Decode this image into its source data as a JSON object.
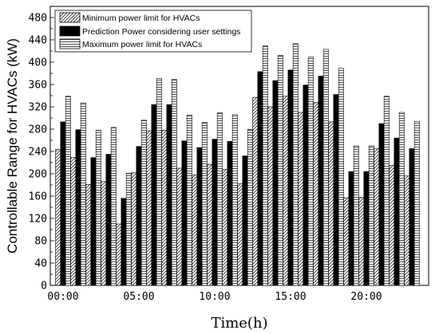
{
  "chart_data": {
    "type": "bar",
    "xlabel": "Time(h)",
    "ylabel": "Controllable Range for HVACs (kW)",
    "ylim": [
      0,
      500
    ],
    "yticks": [
      0,
      40,
      80,
      120,
      160,
      200,
      240,
      280,
      320,
      360,
      400,
      440,
      480
    ],
    "x": [
      0,
      1,
      2,
      3,
      4,
      5,
      6,
      7,
      8,
      9,
      10,
      11,
      12,
      13,
      14,
      15,
      16,
      17,
      18,
      19,
      20,
      21,
      22,
      23
    ],
    "xticks": [
      0,
      5,
      10,
      15,
      20
    ],
    "xtick_labels": [
      "00:00",
      "05:00",
      "10:00",
      "15:00",
      "20:00"
    ],
    "grid": false,
    "legend_position": "top-left",
    "series": [
      {
        "name": "Minimum power limit for HVACs",
        "pattern": "diagonal-hatch",
        "values": [
          244,
          229,
          181,
          186,
          110,
          202,
          277,
          278,
          210,
          198,
          217,
          208,
          182,
          337,
          320,
          339,
          310,
          328,
          293,
          157,
          158,
          245,
          215,
          196
        ]
      },
      {
        "name": "Prediction Power considering user settings",
        "pattern": "solid-black",
        "values": [
          293,
          279,
          229,
          235,
          156,
          249,
          324,
          324,
          259,
          247,
          262,
          258,
          232,
          383,
          367,
          386,
          359,
          375,
          342,
          204,
          204,
          290,
          264,
          245
        ]
      },
      {
        "name": "Maximum power limit for HVACs",
        "pattern": "horizontal-hatch",
        "values": [
          339,
          327,
          278,
          283,
          201,
          296,
          371,
          369,
          305,
          292,
          309,
          306,
          279,
          429,
          412,
          433,
          409,
          423,
          389,
          250,
          250,
          339,
          310,
          294
        ]
      }
    ]
  }
}
